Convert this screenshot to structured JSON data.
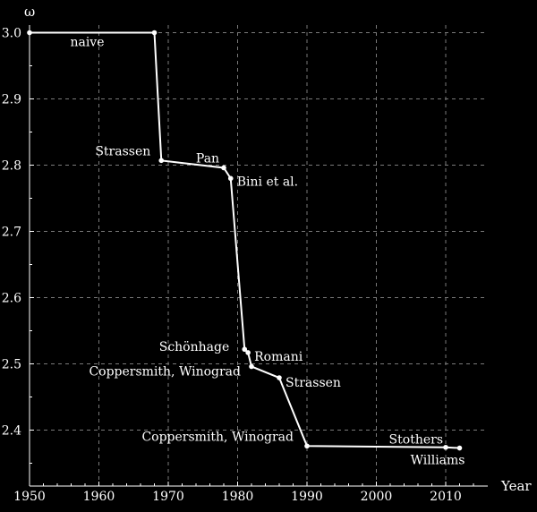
{
  "chart_data": {
    "type": "line",
    "title": "",
    "xlabel": "Year",
    "ylabel": "ω",
    "xlim": [
      1950,
      2015
    ],
    "ylim": [
      2.35,
      3.0
    ],
    "xticks": [
      1950,
      1960,
      1970,
      1980,
      1990,
      2000,
      2010
    ],
    "xtick_labels": [
      "1950",
      "1960",
      "1970",
      "1980",
      "1990",
      "2000",
      "2010"
    ],
    "yticks": [
      2.4,
      2.5,
      2.6,
      2.7,
      2.8,
      2.9,
      3.0
    ],
    "ytick_labels": [
      "2.4",
      "2.5",
      "2.6",
      "2.7",
      "2.8",
      "2.9",
      "3.0"
    ],
    "grid": true,
    "colors": {
      "background": "#000000",
      "line": "#ffffff",
      "grid": "#7a7a7a",
      "text": "#ffffff"
    },
    "points": [
      {
        "x": 1950,
        "y": 3.0,
        "label": "",
        "marker": true
      },
      {
        "x": 1968,
        "y": 3.0,
        "label": "naive",
        "marker": true
      },
      {
        "x": 1969,
        "y": 2.807,
        "label": "Strassen",
        "marker": true
      },
      {
        "x": 1978,
        "y": 2.796,
        "label": "Pan",
        "marker": true
      },
      {
        "x": 1979,
        "y": 2.78,
        "label": "Bini et al.",
        "marker": true
      },
      {
        "x": 1981,
        "y": 2.522,
        "label": "Schönhage",
        "marker": true
      },
      {
        "x": 1981.5,
        "y": 2.517,
        "label": "Romani",
        "marker": true
      },
      {
        "x": 1982,
        "y": 2.496,
        "label": "Coppersmith, Winograd",
        "marker": true
      },
      {
        "x": 1986,
        "y": 2.479,
        "label": "Strassen",
        "marker": true
      },
      {
        "x": 1990,
        "y": 2.376,
        "label": "Coppersmith, Winograd",
        "marker": true
      },
      {
        "x": 2010,
        "y": 2.374,
        "label": "Stothers",
        "marker": true
      },
      {
        "x": 2012,
        "y": 2.3729,
        "label": "Williams",
        "marker": true
      }
    ]
  }
}
